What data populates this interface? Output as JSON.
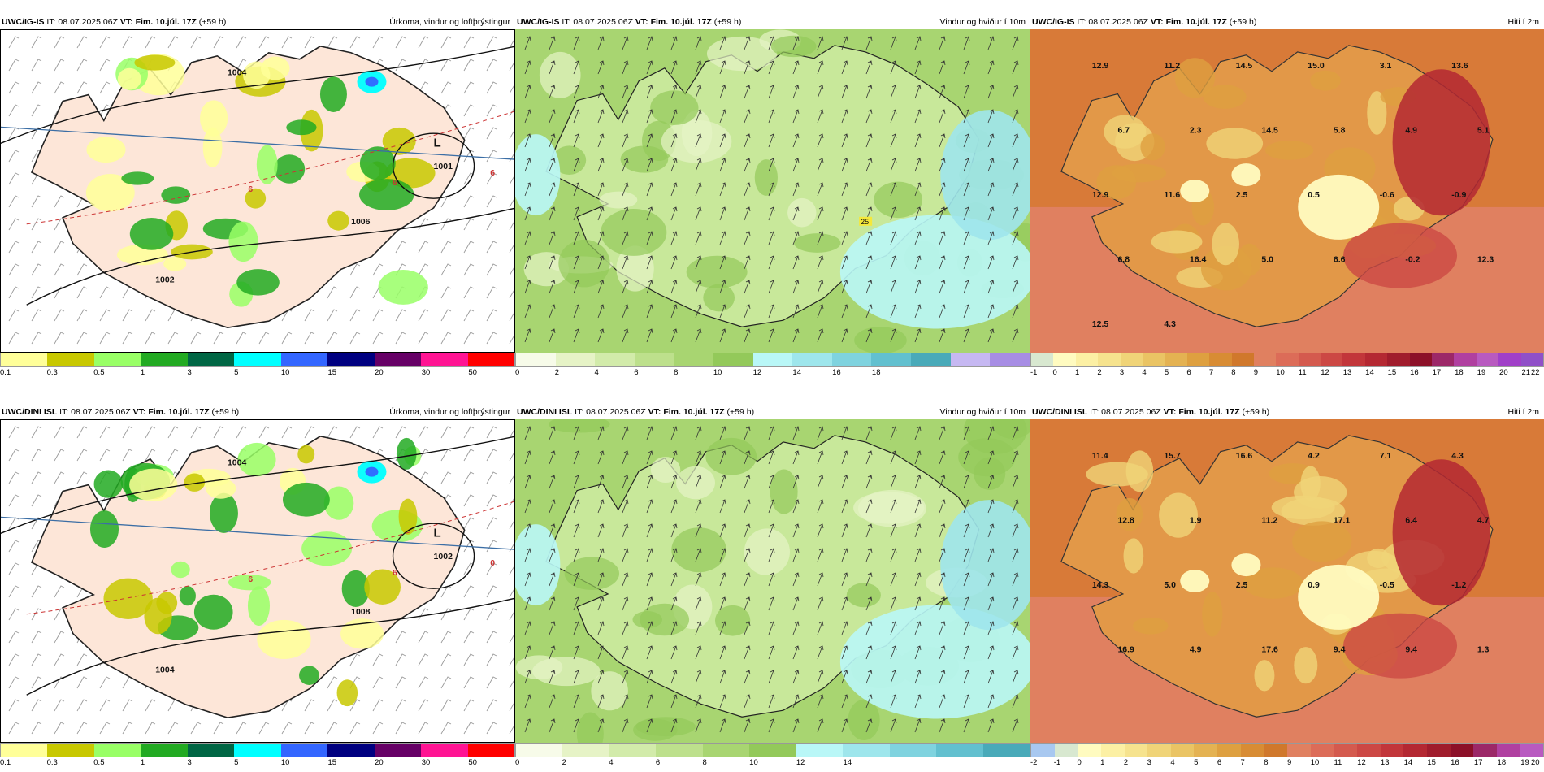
{
  "panels": [
    {
      "id": "igis-precip",
      "model": "UWC/IG-IS",
      "it_label": "IT: 08.07.2025 06Z",
      "vt_label": "VT: Fim. 10.júl. 17Z",
      "lead": "(+59 h)",
      "title": "Úrkoma, vindur og loftþrýstingur",
      "pressure_labels": [
        "L",
        "1001",
        "1004",
        "1006",
        "1002",
        "6",
        "6",
        "6"
      ],
      "colorbar": {
        "colors": [
          "#ffff99",
          "#c8c800",
          "#99ff66",
          "#22aa22",
          "#006644",
          "#00ffff",
          "#3366ff",
          "#000080",
          "#660066",
          "#ff1493",
          "#ff0000"
        ],
        "ticks": [
          "0.1",
          "0.3",
          "0.5",
          "1",
          "3",
          "5",
          "10",
          "15",
          "20",
          "30",
          "50"
        ]
      }
    },
    {
      "id": "igis-wind",
      "model": "UWC/IG-IS",
      "it_label": "IT: 08.07.2025 06Z",
      "vt_label": "VT: Fim. 10.júl. 17Z",
      "lead": "(+59 h)",
      "title": "Vindur og hviður í 10m",
      "point_label": "25",
      "colorbar": {
        "colors": [
          "#f7fbe9",
          "#e6f3c6",
          "#d2ebaa",
          "#bde08c",
          "#a8d571",
          "#93c95a",
          "#b9f7f7",
          "#9ee6ec",
          "#7fd3df",
          "#62c0cf",
          "#49aab9",
          "#c6b8f2",
          "#a78de4"
        ],
        "ticks": [
          "0",
          "2",
          "4",
          "6",
          "8",
          "10",
          "12",
          "14",
          "16",
          "18"
        ]
      }
    },
    {
      "id": "igis-temp",
      "model": "UWC/IG-IS",
      "it_label": "IT: 08.07.2025 06Z",
      "vt_label": "VT: Fim. 10.júl. 17Z",
      "lead": "(+59 h)",
      "title": "Hiti í 2m",
      "temp_labels": [
        "12.9",
        "11.2",
        "14.5",
        "15.0",
        "3.1",
        "13.6",
        "6.7",
        "2.3",
        "14.5",
        "5.8",
        "4.9",
        "5.1",
        "12.9",
        "11.6",
        "2.5",
        "0.5",
        "-0.6",
        "-0.9",
        "6.8",
        "16.4",
        "5.0",
        "6.6",
        "-0.2",
        "12.3",
        "12.5",
        "4.3"
      ],
      "colorbar": {
        "colors": [
          "#d8e8d0",
          "#fffbc0",
          "#fcf0a4",
          "#f6e38e",
          "#f0d478",
          "#eac464",
          "#e4b252",
          "#dea040",
          "#d88c34",
          "#d0782c",
          "#e08060",
          "#dc6c58",
          "#d45a4e",
          "#cc4844",
          "#c2363a",
          "#b42832",
          "#a01c2c",
          "#8c1028",
          "#9c2868",
          "#b040a0",
          "#b85ac0",
          "#a040c8",
          "#9050c8"
        ],
        "ticks": [
          "-1",
          "0",
          "1",
          "2",
          "3",
          "4",
          "5",
          "6",
          "7",
          "8",
          "9",
          "10",
          "11",
          "12",
          "13",
          "14",
          "15",
          "16",
          "17",
          "18",
          "19",
          "20",
          "21",
          "22"
        ]
      }
    },
    {
      "id": "dini-precip",
      "model": "UWC/DINI ISL",
      "it_label": "IT: 08.07.2025 06Z",
      "vt_label": "VT: Fim. 10.júl. 17Z",
      "lead": "(+59 h)",
      "title": "Úrkoma, vindur og loftþrýstingur",
      "pressure_labels": [
        "L",
        "1002",
        "1004",
        "1008",
        "1004",
        "6",
        "6",
        "0"
      ],
      "colorbar": {
        "colors": [
          "#ffff99",
          "#c8c800",
          "#99ff66",
          "#22aa22",
          "#006644",
          "#00ffff",
          "#3366ff",
          "#000080",
          "#660066",
          "#ff1493",
          "#ff0000"
        ],
        "ticks": [
          "0.1",
          "0.3",
          "0.5",
          "1",
          "3",
          "5",
          "10",
          "15",
          "20",
          "30",
          "50"
        ]
      }
    },
    {
      "id": "dini-wind",
      "model": "UWC/DINI ISL",
      "it_label": "IT: 08.07.2025 06Z",
      "vt_label": "VT: Fim. 10.júl. 17Z",
      "lead": "(+59 h)",
      "title": "Vindur og hviður í 10m",
      "point_label": "",
      "colorbar": {
        "colors": [
          "#f7fbe9",
          "#e6f3c6",
          "#d2ebaa",
          "#bde08c",
          "#a8d571",
          "#93c95a",
          "#b9f7f7",
          "#9ee6ec",
          "#7fd3df",
          "#62c0cf",
          "#49aab9"
        ],
        "ticks": [
          "0",
          "2",
          "4",
          "6",
          "8",
          "10",
          "12",
          "14"
        ]
      }
    },
    {
      "id": "dini-temp",
      "model": "UWC/DINI ISL",
      "it_label": "IT: 08.07.2025 06Z",
      "vt_label": "VT: Fim. 10.júl. 17Z",
      "lead": "(+59 h)",
      "title": "Hiti í 2m",
      "temp_labels": [
        "11.4",
        "15.7",
        "16.6",
        "4.2",
        "7.1",
        "4.3",
        "12.8",
        "1.9",
        "11.2",
        "17.1",
        "6.4",
        "4.7",
        "14.3",
        "5.0",
        "2.5",
        "0.9",
        "-0.5",
        "-1.2",
        "16.9",
        "4.9",
        "17.6",
        "9.4",
        "9.4",
        "1.3"
      ],
      "colorbar": {
        "colors": [
          "#a8c8f0",
          "#d8e8d0",
          "#fffbc0",
          "#fcf0a4",
          "#f6e38e",
          "#f0d478",
          "#eac464",
          "#e4b252",
          "#dea040",
          "#d88c34",
          "#d0782c",
          "#e08060",
          "#dc6c58",
          "#d45a4e",
          "#cc4844",
          "#c2363a",
          "#b42832",
          "#a01c2c",
          "#8c1028",
          "#9c2868",
          "#b040a0",
          "#b85ac0"
        ],
        "ticks": [
          "-2",
          "-1",
          "0",
          "1",
          "2",
          "3",
          "4",
          "5",
          "6",
          "7",
          "8",
          "9",
          "10",
          "11",
          "12",
          "13",
          "14",
          "15",
          "16",
          "17",
          "18",
          "19",
          "20"
        ]
      }
    }
  ]
}
